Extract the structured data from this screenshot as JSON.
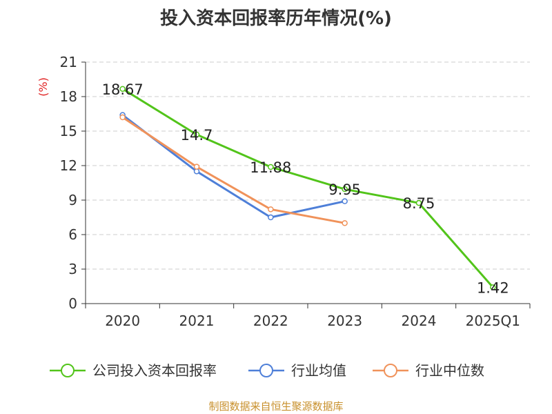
{
  "chart_data": {
    "type": "line",
    "title": "投入资本回报率历年情况(%)",
    "ylabel": "(%)",
    "categories": [
      "2020",
      "2021",
      "2022",
      "2023",
      "2024",
      "2025Q1"
    ],
    "ylim": [
      0,
      21
    ],
    "yticks": [
      0,
      3,
      6,
      9,
      12,
      15,
      18,
      21
    ],
    "grid": true,
    "legend_position": "bottom",
    "series": [
      {
        "name": "公司投入资本回报率",
        "values": [
          18.67,
          14.7,
          11.88,
          9.95,
          8.75,
          1.42
        ],
        "color": "#52c41a",
        "data_labels": [
          "18.67",
          "14.7",
          "11.88",
          "9.95",
          "8.75",
          "1.42"
        ]
      },
      {
        "name": "行业均值",
        "values": [
          16.4,
          11.5,
          7.5,
          8.9,
          null,
          null
        ],
        "color": "#4e7fd8"
      },
      {
        "name": "行业中位数",
        "values": [
          16.2,
          11.9,
          8.2,
          7.0,
          null,
          null
        ],
        "color": "#f0925a"
      }
    ]
  },
  "source_note": "制图数据来自恒生聚源数据库",
  "colors": {
    "ylabel": "#e02020",
    "source_note": "#c8902c",
    "axis": "#333333",
    "grid": "#cccccc"
  }
}
